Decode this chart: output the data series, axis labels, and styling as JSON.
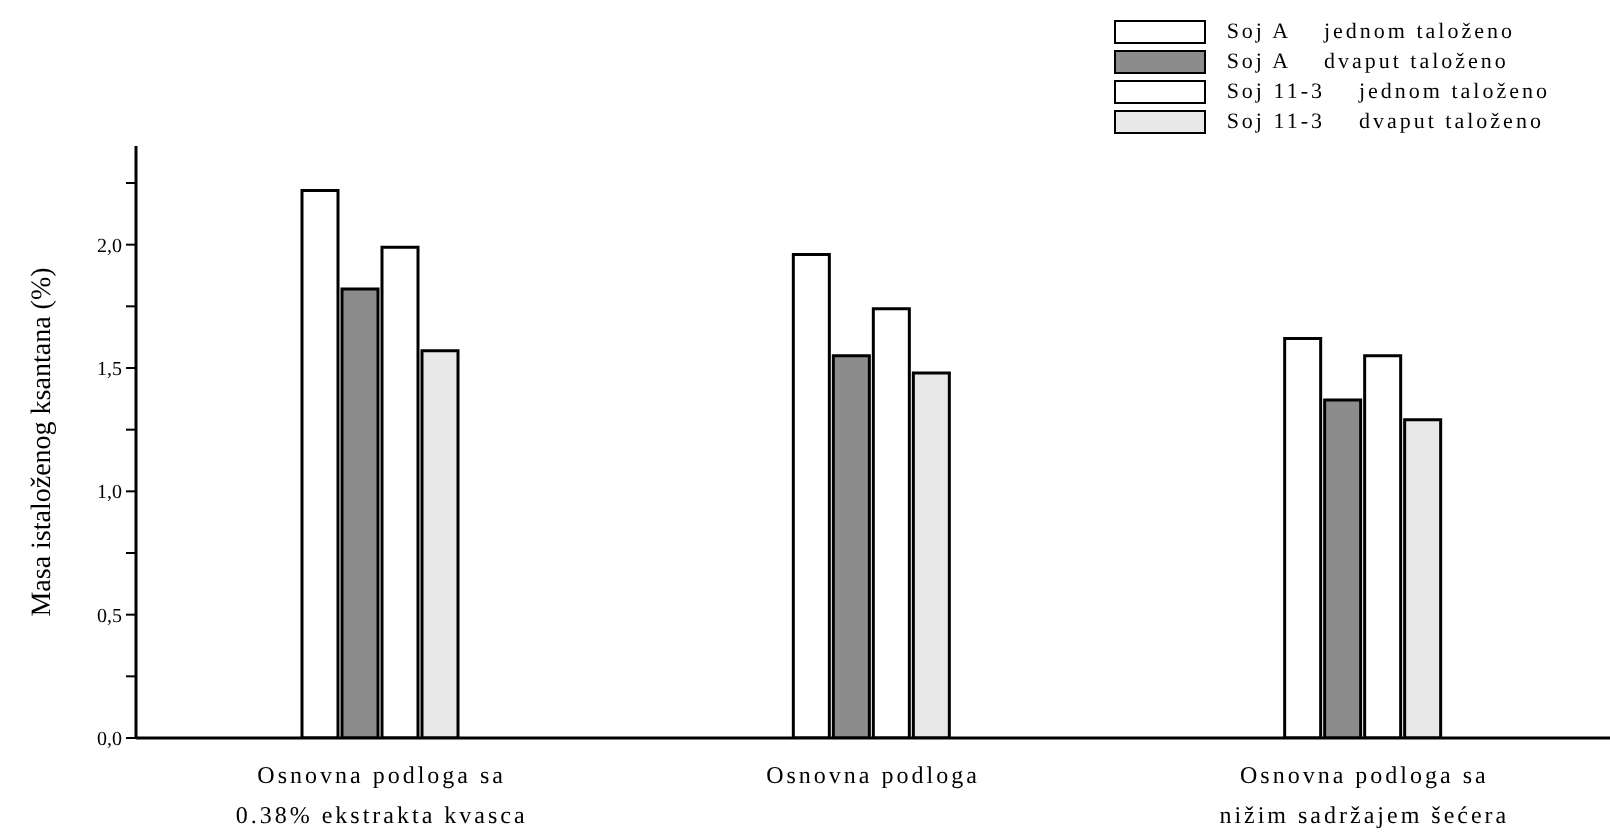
{
  "chart_data": {
    "type": "bar",
    "ylabel": "Masa istaloženog ksantana (%)",
    "categories": [
      "Osnovna podloga sa 0.38% ekstrakta kvasca",
      "Osnovna podloga",
      "Osnovna podloga sa nižim sadržajem šećera"
    ],
    "series": [
      {
        "name": "Soj A    jednom taloženo",
        "color": "#ffffff",
        "values": [
          2.22,
          1.96,
          1.62
        ]
      },
      {
        "name": "Soj A    dvaput taloženo",
        "color": "#8c8c8c",
        "values": [
          1.82,
          1.55,
          1.37
        ]
      },
      {
        "name": "Soj 11-3    jednom taloženo",
        "color": "#ffffff",
        "values": [
          1.99,
          1.74,
          1.55
        ]
      },
      {
        "name": "Soj 11-3    dvaput taloženo",
        "color": "#e8e8e8",
        "values": [
          1.57,
          1.48,
          1.29
        ]
      }
    ],
    "ylim": [
      0,
      2.4
    ],
    "yticks": [
      {
        "value": 0,
        "label": "0,0"
      },
      {
        "value": 0.25,
        "label": null
      },
      {
        "value": 0.5,
        "label": "0,5"
      },
      {
        "value": 0.75,
        "label": null
      },
      {
        "value": 1,
        "label": "1,0"
      },
      {
        "value": 1.25,
        "label": null
      },
      {
        "value": 1.5,
        "label": "1,5"
      },
      {
        "value": 1.75,
        "label": null
      },
      {
        "value": 2,
        "label": "2,0"
      },
      {
        "value": 2.25,
        "label": null
      }
    ],
    "legend": "top right",
    "grid": false
  }
}
